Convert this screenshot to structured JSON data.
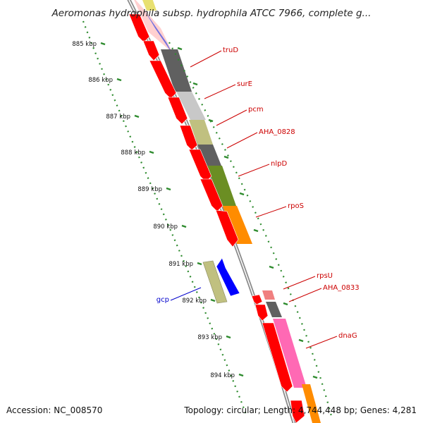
{
  "title": "Aeromonas hydrophila subsp. hydrophila ATCC 7966, complete g...",
  "accession": "Accession: NC_008570",
  "topology": "Topology: circular; Length: 4,744,448 bp; Genes: 4,281",
  "ticks": [
    {
      "label": "885 kbp"
    },
    {
      "label": "886 kbp"
    },
    {
      "label": "887 kbp"
    },
    {
      "label": "888 kbp"
    },
    {
      "label": "889 kbp"
    },
    {
      "label": "890 kbp"
    },
    {
      "label": "891 kbp"
    },
    {
      "label": "892 kbp"
    },
    {
      "label": "893 kbp"
    },
    {
      "label": "894 kbp"
    }
  ],
  "gene_labels": [
    {
      "name": "truD",
      "color": "#cc0000"
    },
    {
      "name": "surE",
      "color": "#cc0000"
    },
    {
      "name": "pcm",
      "color": "#cc0000"
    },
    {
      "name": "AHA_0828",
      "color": "#cc0000"
    },
    {
      "name": "nlpD",
      "color": "#cc0000"
    },
    {
      "name": "rpoS",
      "color": "#cc0000"
    },
    {
      "name": "rpsU",
      "color": "#cc0000"
    },
    {
      "name": "AHA_0833",
      "color": "#cc0000"
    },
    {
      "name": "dnaG",
      "color": "#cc0000"
    },
    {
      "name": "gcp",
      "color": "#0000cc"
    }
  ],
  "colors": {
    "cds_forward": "#ff0000",
    "backbone": "#808080",
    "tick_marks": "#2e8b2e",
    "gc_content": [
      "#7070e0",
      "#606060",
      "#c8c8c8",
      "#c0c080",
      "#6b8e23",
      "#ff8c00",
      "#ff69b4",
      "#f08080"
    ]
  }
}
